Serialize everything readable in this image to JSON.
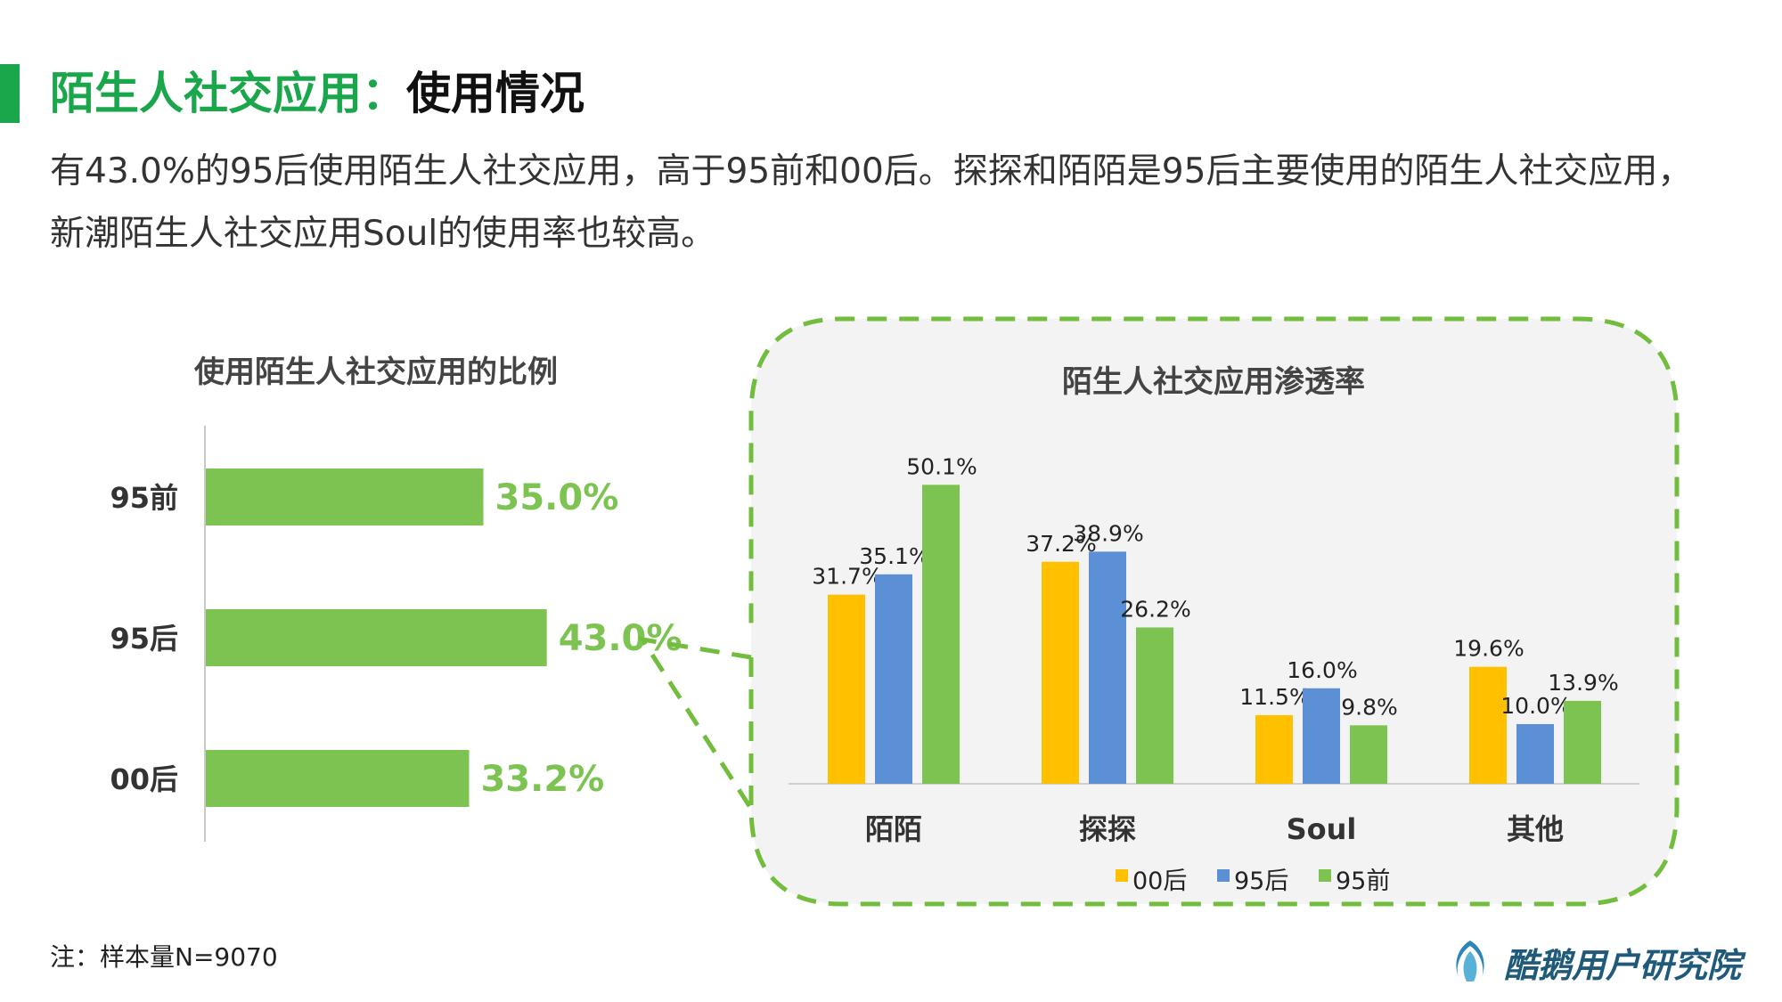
{
  "header": {
    "title_green": "陌生人社交应用：",
    "title_black": "使用情况",
    "description": "有43.0%的95后使用陌生人社交应用，高于95前和00后。探探和陌陌是95后主要使用的陌生人社交应用，新潮陌生人社交应用Soul的使用率也较高。"
  },
  "footer": {
    "note": "注：样本量N=9070",
    "logo_text": "酷鹅用户研究院"
  },
  "colors": {
    "accent": "#1aa64a",
    "bar_green": "#7dc352",
    "yellow": "#ffc000",
    "blue": "#5b8fd6",
    "dashed_border": "#72bc3e"
  },
  "chart_data": [
    {
      "type": "bar",
      "orientation": "horizontal",
      "title": "使用陌生人社交应用的比例",
      "categories": [
        "95前",
        "95后",
        "00后"
      ],
      "values": [
        35.0,
        43.0,
        33.2
      ],
      "value_labels": [
        "35.0%",
        "43.0%",
        "33.2%"
      ],
      "xlim": [
        0,
        100
      ]
    },
    {
      "type": "bar",
      "orientation": "vertical",
      "title": "陌生人社交应用渗透率",
      "categories": [
        "陌陌",
        "探探",
        "Soul",
        "其他"
      ],
      "series": [
        {
          "name": "00后",
          "values": [
            31.7,
            37.2,
            11.5,
            19.6
          ],
          "labels": [
            "31.7%",
            "37.2%",
            "11.5%",
            "19.6%"
          ],
          "color": "#ffc000"
        },
        {
          "name": "95后",
          "values": [
            35.1,
            38.9,
            16.0,
            10.0
          ],
          "labels": [
            "35.1%",
            "38.9%",
            "16.0%",
            "10.0%"
          ],
          "color": "#5b8fd6"
        },
        {
          "name": "95前",
          "values": [
            50.1,
            26.2,
            9.8,
            13.9
          ],
          "labels": [
            "50.1%",
            "26.2%",
            "9.8%",
            "13.9%"
          ],
          "color": "#7dc352"
        }
      ],
      "ylim": [
        0,
        60
      ],
      "legend_position": "bottom"
    }
  ]
}
